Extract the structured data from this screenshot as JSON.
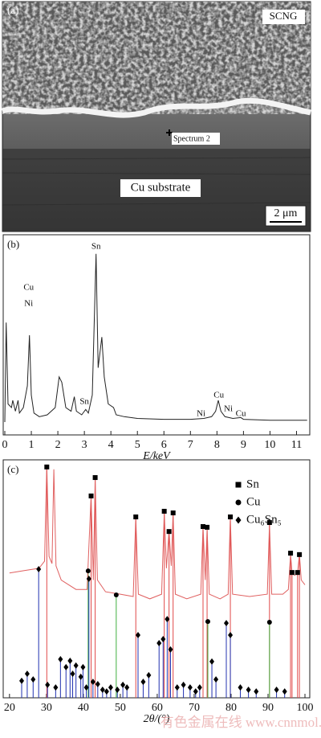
{
  "image": {
    "label": "(a)",
    "annotations": [
      "SCNG",
      "Spectrum 2",
      "Cu substrate"
    ],
    "scale_bar": "2 μm"
  },
  "chart_data": [
    {
      "type": "spectrum",
      "label": "(b)",
      "xlabel": "E/keV",
      "xlim": [
        0,
        11.5
      ],
      "xticks": [
        0,
        1,
        2,
        3,
        4,
        5,
        6,
        7,
        8,
        9,
        10,
        11
      ],
      "ylim": [
        0,
        100
      ],
      "color": "#222222",
      "x": [
        0,
        0.05,
        0.12,
        0.25,
        0.3,
        0.4,
        0.5,
        0.55,
        0.7,
        0.85,
        0.93,
        1.0,
        1.1,
        1.3,
        1.6,
        1.9,
        2.05,
        2.15,
        2.3,
        2.5,
        2.62,
        2.7,
        2.9,
        3.05,
        3.15,
        3.3,
        3.44,
        3.52,
        3.6,
        3.66,
        3.75,
        3.9,
        4.1,
        4.2,
        4.5,
        5,
        6,
        7,
        7.5,
        7.8,
        7.95,
        8.05,
        8.15,
        8.3,
        8.6,
        8.9,
        9,
        10,
        11.4
      ],
      "y": [
        0,
        55,
        10,
        8,
        12,
        6,
        12,
        5,
        8,
        20,
        48,
        15,
        5,
        3,
        4,
        8,
        25,
        22,
        8,
        6,
        14,
        6,
        4,
        7,
        5,
        15,
        93,
        30,
        40,
        47,
        25,
        10,
        8,
        4,
        3,
        2,
        1.5,
        1.5,
        2,
        3,
        6,
        12,
        6,
        3,
        2,
        2.5,
        1.5,
        1,
        1
      ],
      "annotations": [
        {
          "text": "Cu",
          "x": 0.9
        },
        {
          "text": "Ni",
          "x": 0.9
        },
        {
          "text": "Sn",
          "x": 3.44
        },
        {
          "text": "Sn",
          "x": 3.0
        },
        {
          "text": "Ni",
          "x": 7.4
        },
        {
          "text": "Cu",
          "x": 8.07
        },
        {
          "text": "Ni",
          "x": 8.43
        },
        {
          "text": "Cu",
          "x": 8.9
        }
      ]
    },
    {
      "type": "xrd",
      "label": "(c)",
      "xlabel": "2θ/(°)",
      "xlim": [
        18.3,
        101.3
      ],
      "xticks": [
        20,
        30,
        40,
        50,
        60,
        70,
        80,
        90,
        100
      ],
      "ylim": [
        0,
        100
      ],
      "legend": "upper right",
      "pattern": {
        "color": "#e06060",
        "x": [
          20,
          24,
          28,
          29.5,
          30.1,
          30.7,
          31.5,
          32,
          32.6,
          34,
          38,
          41,
          42.1,
          42.7,
          43.2,
          43.8,
          46,
          50,
          53.5,
          54.2,
          54.9,
          58,
          61.2,
          61.9,
          62.5,
          63.2,
          63.8,
          64.3,
          64.9,
          68,
          71.8,
          72.4,
          73,
          73.5,
          74.1,
          77,
          79.2,
          79.8,
          80.4,
          85,
          89.8,
          90.4,
          91,
          94,
          95.5,
          96.1,
          96.5,
          97.2,
          98,
          98.5,
          99,
          100
        ],
        "y": [
          53,
          54,
          55,
          58,
          99,
          60,
          57,
          97,
          56,
          50,
          46,
          46,
          86,
          50,
          94,
          50,
          45,
          44,
          43,
          77,
          44,
          42,
          44,
          79,
          55,
          71,
          56,
          79,
          44,
          42,
          44,
          73,
          50,
          72,
          44,
          42,
          44,
          77,
          44,
          43,
          44,
          74,
          44,
          44,
          46,
          61,
          53,
          52,
          53,
          61,
          50,
          48
        ]
      },
      "series": [
        {
          "name": "Sn",
          "marker": "square",
          "color": "#e04848",
          "x": [
            30.1,
            42.1,
            43.2,
            54.2,
            61.9,
            63.2,
            64.3,
            72.4,
            73.5,
            79.8,
            90.4,
            96.1,
            96.5,
            98.0,
            98.5
          ],
          "values": [
            98,
            85.7,
            93.5,
            76.8,
            79.2,
            70.6,
            78.5,
            72.7,
            72.4,
            76.8,
            74.4,
            61.4,
            53.2,
            53.2,
            60.8
          ]
        },
        {
          "name": "Cu",
          "marker": "circle",
          "color": "#40b040",
          "x": [
            41.3,
            48.9,
            73.7,
            90.4
          ],
          "values": [
            53.9,
            43.7,
            32.4,
            32.1
          ]
        },
        {
          "name": "Cu₆Sn₅",
          "marker": "diamond",
          "color": "#2030b0",
          "x": [
            23.3,
            24.8,
            26.4,
            27.9,
            30.3,
            32.5,
            33.8,
            35.3,
            36.4,
            37.1,
            38.0,
            39.3,
            39.9,
            40.8,
            41.5,
            42.6,
            43.9,
            45.2,
            46.3,
            47.4,
            49.2,
            50.7,
            51.8,
            54.8,
            56.2,
            57.7,
            60.5,
            61.6,
            62.7,
            63.6,
            65.4,
            67.1,
            68.9,
            70.4,
            71.5,
            74.8,
            75.9,
            78.7,
            79.8,
            82.5,
            84.7,
            86.8,
            92.3,
            94.5
          ],
          "values": [
            7.2,
            10.2,
            7.8,
            54.6,
            5.5,
            4.4,
            16.4,
            13,
            15.7,
            10.2,
            13.7,
            8.9,
            13,
            4.4,
            50.5,
            6.8,
            5.8,
            3.4,
            2.7,
            4.4,
            3.4,
            5.5,
            4.4,
            26.6,
            6.8,
            9.6,
            23.2,
            24.9,
            33.4,
            20.5,
            4.4,
            5.5,
            4.4,
            2.7,
            4.4,
            15.4,
            7.8,
            31.7,
            26.6,
            4.4,
            3.4,
            2.7,
            3.4,
            2.7
          ]
        }
      ],
      "watermark": "有色金属在线 www.cnnmol.com"
    }
  ]
}
